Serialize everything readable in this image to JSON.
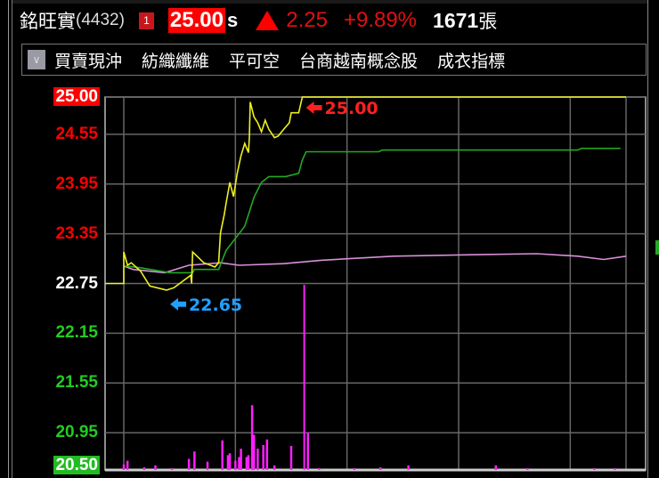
{
  "header": {
    "stock_name": "銘旺實",
    "stock_code": "(4432)",
    "market_badge": "1",
    "last_price": "25.00",
    "price_suffix": "s",
    "change_direction": "up",
    "change": "2.25",
    "change_percent": "+9.89%",
    "volume": "1671",
    "volume_unit": "張"
  },
  "toolbar": {
    "dropdown_icon": "chevron-down-icon",
    "tags": [
      "買賣現沖",
      "紡織纖維",
      "平可空",
      "台商越南概念股",
      "成衣指標"
    ]
  },
  "colors": {
    "up": "#ff0000",
    "down": "#22cc22",
    "price_line": "#f0f020",
    "avg_line": "#22aa22",
    "ref_line": "#d890d8",
    "volume": "#ff20ff",
    "high_marker": "#ff2020",
    "low_marker": "#20a0ff"
  },
  "chart_data": {
    "type": "line",
    "ylim": [
      20.5,
      25.0
    ],
    "y_ticks": [
      {
        "label": "25.00",
        "value": 25.0,
        "color": "up",
        "boxed": true
      },
      {
        "label": "24.55",
        "value": 24.55,
        "color": "up"
      },
      {
        "label": "23.95",
        "value": 23.95,
        "color": "up"
      },
      {
        "label": "23.35",
        "value": 23.35,
        "color": "up"
      },
      {
        "label": "22.75",
        "value": 22.75,
        "color": "neutral"
      },
      {
        "label": "22.15",
        "value": 22.15,
        "color": "down"
      },
      {
        "label": "21.55",
        "value": 21.55,
        "color": "down"
      },
      {
        "label": "20.95",
        "value": 20.95,
        "color": "down"
      },
      {
        "label": "20.50",
        "value": 20.5,
        "color": "down",
        "boxed": true
      }
    ],
    "x_unit": "minutes since open",
    "xlim": [
      0,
      270
    ],
    "x_grid": [
      0,
      60,
      120,
      180,
      240,
      270
    ],
    "grid": true,
    "reference_price": 22.75,
    "series": [
      {
        "key": "price",
        "points": [
          [
            0,
            22.75
          ],
          [
            0,
            23.13
          ],
          [
            2,
            22.97
          ],
          [
            4,
            23.0
          ],
          [
            9,
            22.9
          ],
          [
            14,
            22.72
          ],
          [
            23,
            22.67
          ],
          [
            27,
            22.7
          ],
          [
            36,
            22.85
          ],
          [
            36.5,
            22.75
          ],
          [
            37,
            23.13
          ],
          [
            43,
            23.0
          ],
          [
            49,
            22.95
          ],
          [
            51,
            23.0
          ],
          [
            52,
            23.36
          ],
          [
            54,
            23.58
          ],
          [
            55,
            23.72
          ],
          [
            57,
            23.97
          ],
          [
            59,
            23.8
          ],
          [
            61,
            24.08
          ],
          [
            63,
            24.29
          ],
          [
            65,
            24.44
          ],
          [
            67,
            24.33
          ],
          [
            67.5,
            24.51
          ],
          [
            68,
            24.94
          ],
          [
            70,
            24.76
          ],
          [
            72,
            24.69
          ],
          [
            74,
            24.58
          ],
          [
            76,
            24.72
          ],
          [
            78,
            24.61
          ],
          [
            81,
            24.51
          ],
          [
            83,
            24.53
          ],
          [
            86,
            24.61
          ],
          [
            89,
            24.69
          ],
          [
            90,
            24.81
          ],
          [
            94,
            24.81
          ],
          [
            96,
            25.0
          ],
          [
            270,
            25.0
          ]
        ]
      },
      {
        "key": "average",
        "points": [
          [
            1,
            22.96
          ],
          [
            9,
            22.94
          ],
          [
            25,
            22.88
          ],
          [
            37,
            22.88
          ],
          [
            38,
            22.92
          ],
          [
            51,
            22.92
          ],
          [
            55,
            23.15
          ],
          [
            65,
            23.44
          ],
          [
            70,
            23.79
          ],
          [
            74,
            23.97
          ],
          [
            78,
            24.04
          ],
          [
            87,
            24.04
          ],
          [
            94,
            24.08
          ],
          [
            96,
            24.24
          ],
          [
            98,
            24.34
          ],
          [
            137,
            24.34
          ],
          [
            139,
            24.36
          ],
          [
            244,
            24.36
          ],
          [
            246,
            24.38
          ],
          [
            267,
            24.38
          ]
        ]
      },
      {
        "key": "reference",
        "points": [
          [
            0,
            22.96
          ],
          [
            5,
            22.92
          ],
          [
            22,
            22.88
          ],
          [
            35,
            22.97
          ],
          [
            52,
            23.0
          ],
          [
            62,
            22.97
          ],
          [
            86,
            22.99
          ],
          [
            106,
            23.03
          ],
          [
            145,
            23.08
          ],
          [
            194,
            23.1
          ],
          [
            222,
            23.11
          ],
          [
            244,
            23.08
          ],
          [
            258,
            23.04
          ],
          [
            270,
            23.08
          ]
        ]
      }
    ],
    "volume_relative": [
      [
        0,
        0.03
      ],
      [
        2,
        0.05
      ],
      [
        11,
        0.015
      ],
      [
        17,
        0.025
      ],
      [
        26,
        0.01
      ],
      [
        35,
        0.06
      ],
      [
        38,
        0.1
      ],
      [
        45,
        0.045
      ],
      [
        53,
        0.16
      ],
      [
        56,
        0.08
      ],
      [
        57,
        0.09
      ],
      [
        60,
        0.05
      ],
      [
        62,
        0.07
      ],
      [
        63,
        0.115
      ],
      [
        66,
        0.07
      ],
      [
        67,
        0.08
      ],
      [
        69,
        0.35
      ],
      [
        70,
        0.19
      ],
      [
        72,
        0.115
      ],
      [
        75,
        0.135
      ],
      [
        77,
        0.165
      ],
      [
        81,
        0.025
      ],
      [
        90,
        0.13
      ],
      [
        97,
        1.0
      ],
      [
        99,
        0.2
      ],
      [
        105,
        0.01
      ],
      [
        124,
        0.01
      ],
      [
        138,
        0.015
      ],
      [
        153,
        0.025
      ],
      [
        200,
        0.025
      ],
      [
        217,
        0.01
      ],
      [
        253,
        0.01
      ],
      [
        264,
        0.01
      ]
    ],
    "annotations": [
      {
        "label": "25.00",
        "type": "high",
        "t": 96,
        "value": 25.0
      },
      {
        "label": "22.65",
        "type": "low",
        "t": 23,
        "value": 22.65
      }
    ]
  }
}
